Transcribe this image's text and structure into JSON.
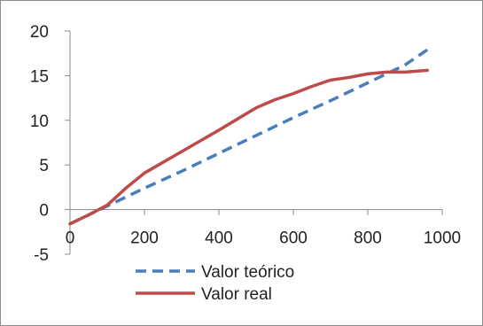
{
  "chart_data": {
    "type": "line",
    "xlim": [
      0,
      1000
    ],
    "ylim": [
      -5,
      20
    ],
    "x_ticks": [
      "0",
      "200",
      "400",
      "600",
      "800",
      "1000"
    ],
    "y_ticks": [
      "-5",
      "0",
      "5",
      "10",
      "15",
      "20"
    ],
    "grid": false,
    "legend_position": "bottom-left",
    "series": [
      {
        "name": "Valor teórico",
        "style": "dashed",
        "color": "#4a7ebb",
        "x": [
          0,
          100,
          200,
          300,
          400,
          500,
          600,
          700,
          800,
          900,
          960
        ],
        "y": [
          -1.6,
          0.4,
          2.4,
          4.3,
          6.3,
          8.3,
          10.3,
          12.2,
          14.2,
          16.2,
          17.9
        ]
      },
      {
        "name": "Valor real",
        "style": "solid",
        "color": "#be4b48",
        "x": [
          0,
          50,
          100,
          150,
          200,
          250,
          300,
          400,
          500,
          550,
          600,
          650,
          700,
          750,
          800,
          850,
          900,
          960
        ],
        "y": [
          -1.6,
          -0.6,
          0.5,
          2.4,
          4.1,
          5.3,
          6.5,
          8.9,
          11.4,
          12.3,
          13.0,
          13.8,
          14.5,
          14.8,
          15.2,
          15.4,
          15.4,
          15.6
        ]
      }
    ]
  }
}
